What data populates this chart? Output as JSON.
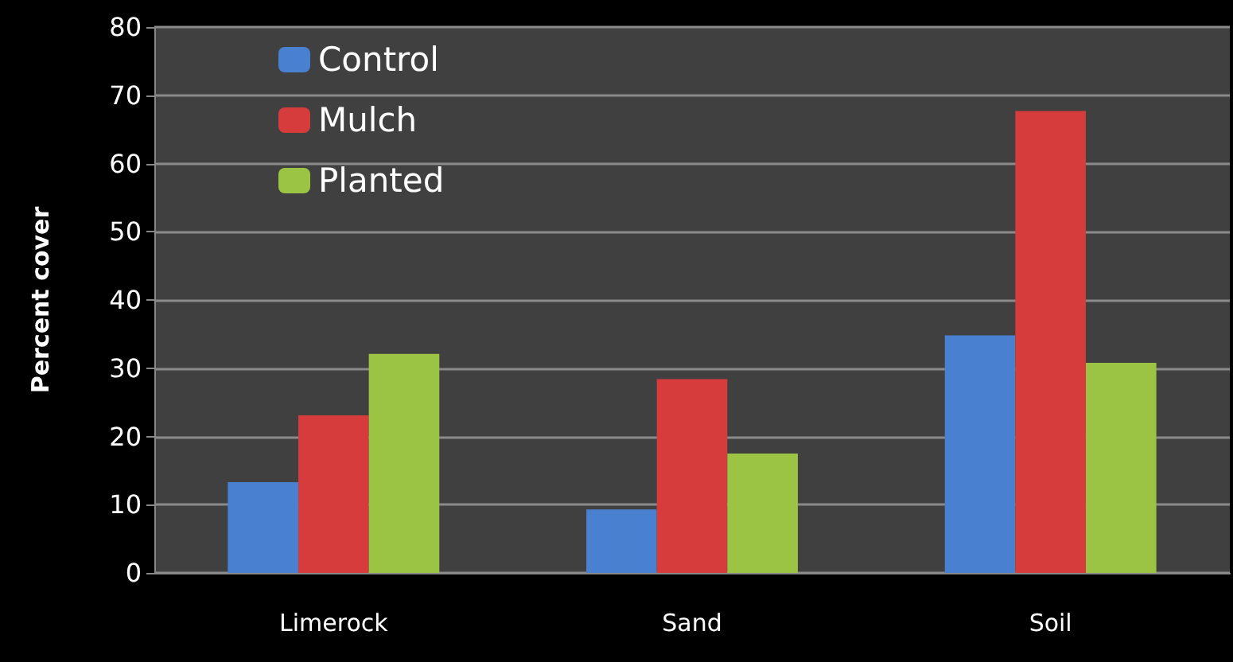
{
  "chart_data": {
    "type": "bar",
    "ylabel": "Percent cover",
    "categories": [
      "Limerock",
      "Sand",
      "Soil"
    ],
    "series": [
      {
        "name": "Control",
        "color": "#4a80d0",
        "values": [
          13.3,
          9.3,
          34.8
        ]
      },
      {
        "name": "Mulch",
        "color": "#d63c3c",
        "values": [
          23.1,
          28.4,
          67.7
        ]
      },
      {
        "name": "Planted",
        "color": "#9cc444",
        "values": [
          32.1,
          17.5,
          30.8
        ]
      }
    ],
    "ylim": [
      0,
      80
    ],
    "yticks": [
      0,
      10,
      20,
      30,
      40,
      50,
      60,
      70,
      80
    ],
    "grid": "y",
    "legend": "top left"
  }
}
